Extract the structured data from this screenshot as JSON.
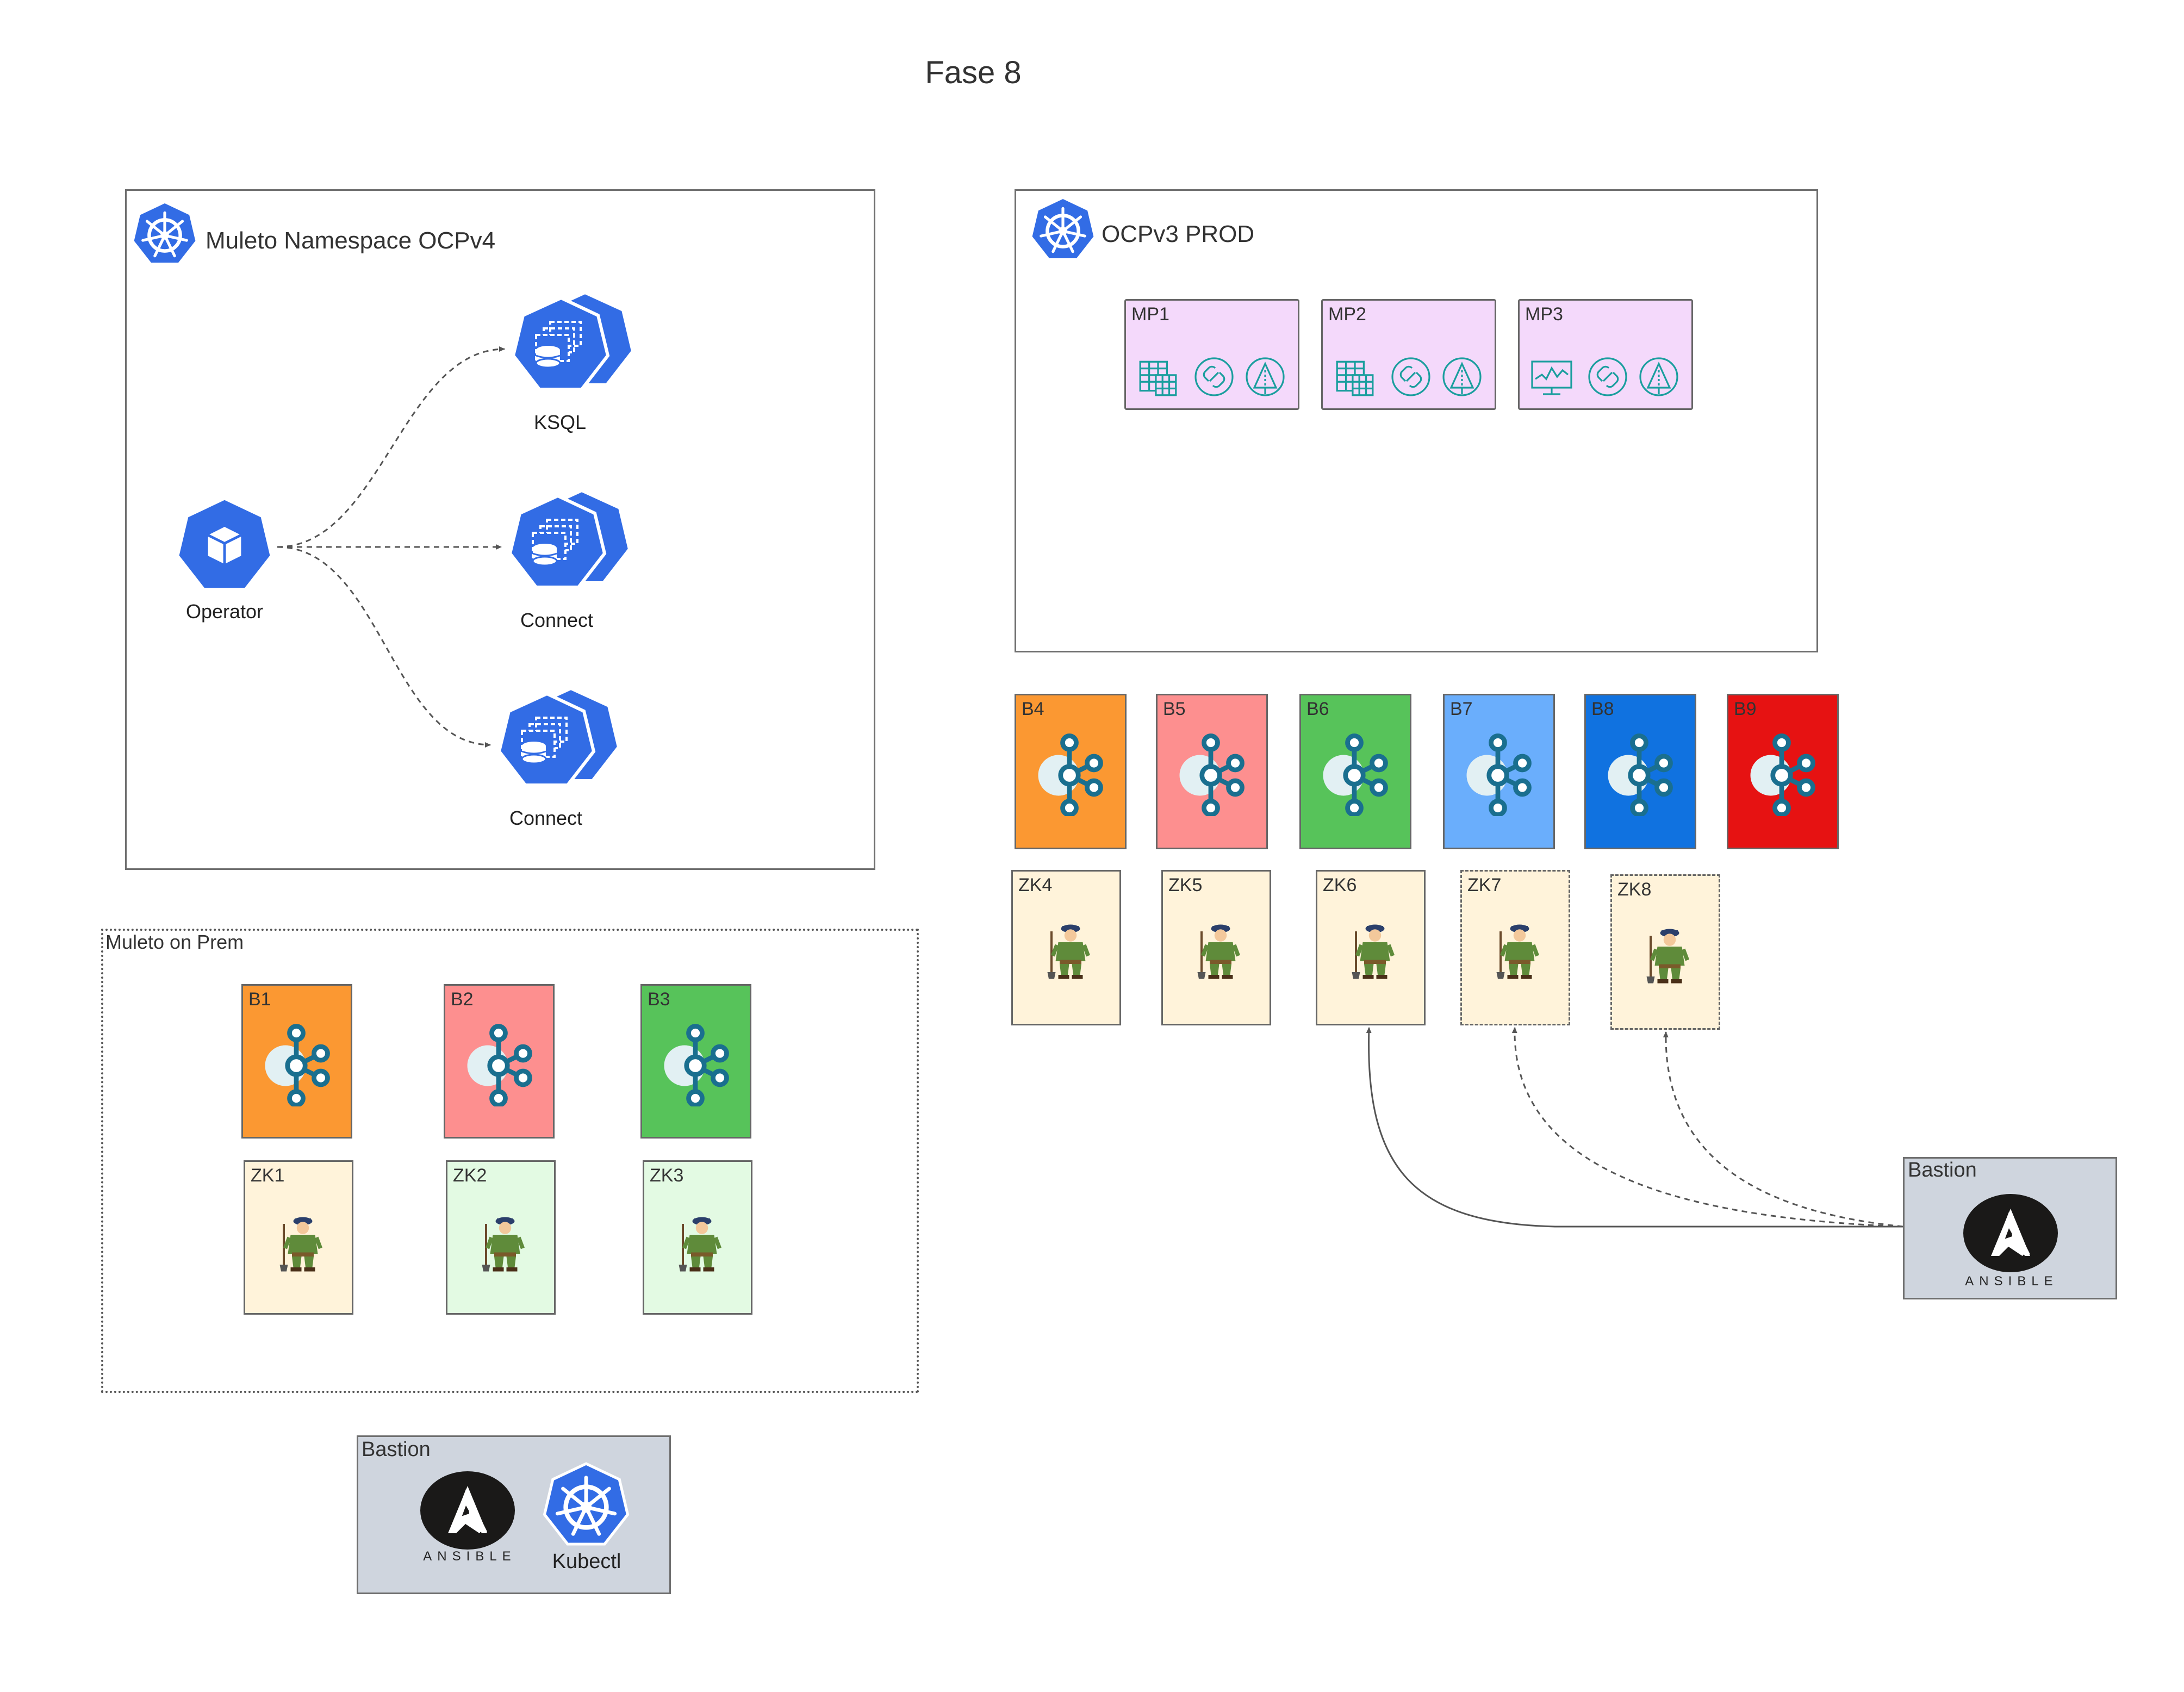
{
  "title": "Fase 8",
  "ocp4": {
    "label": "Muleto Namespace OCPv4",
    "operator": "Operator",
    "ksql": "KSQL",
    "connect1": "Connect",
    "connect2": "Connect"
  },
  "ocp3": {
    "label": "OCPv3 PROD",
    "mp": [
      "MP1",
      "MP2",
      "MP3"
    ]
  },
  "prem": {
    "label": "Muleto on Prem",
    "brokers": [
      "B1",
      "B2",
      "B3"
    ],
    "zk": [
      "ZK1",
      "ZK2",
      "ZK3"
    ]
  },
  "prod_brokers": [
    "B4",
    "B5",
    "B6",
    "B7",
    "B8",
    "B9"
  ],
  "prod_zk": [
    "ZK4",
    "ZK5",
    "ZK6",
    "ZK7",
    "ZK8"
  ],
  "bastion_right": {
    "label": "Bastion",
    "ansible": "ANSIBLE"
  },
  "bastion_bottom": {
    "label": "Bastion",
    "ansible": "ANSIBLE",
    "kubectl": "Kubectl"
  },
  "colors": {
    "b_orange": "#fb9832",
    "b_pink": "#fd8f8f",
    "b_green": "#57c35a",
    "b_lightblue": "#6aaefc",
    "b_blue": "#1072e0",
    "b_red": "#e61212",
    "zk_cream": "#fff3da",
    "zk_mint": "#e3fae3",
    "k8s_blue": "#326ce5",
    "mp_purple": "#f4d9fb"
  }
}
